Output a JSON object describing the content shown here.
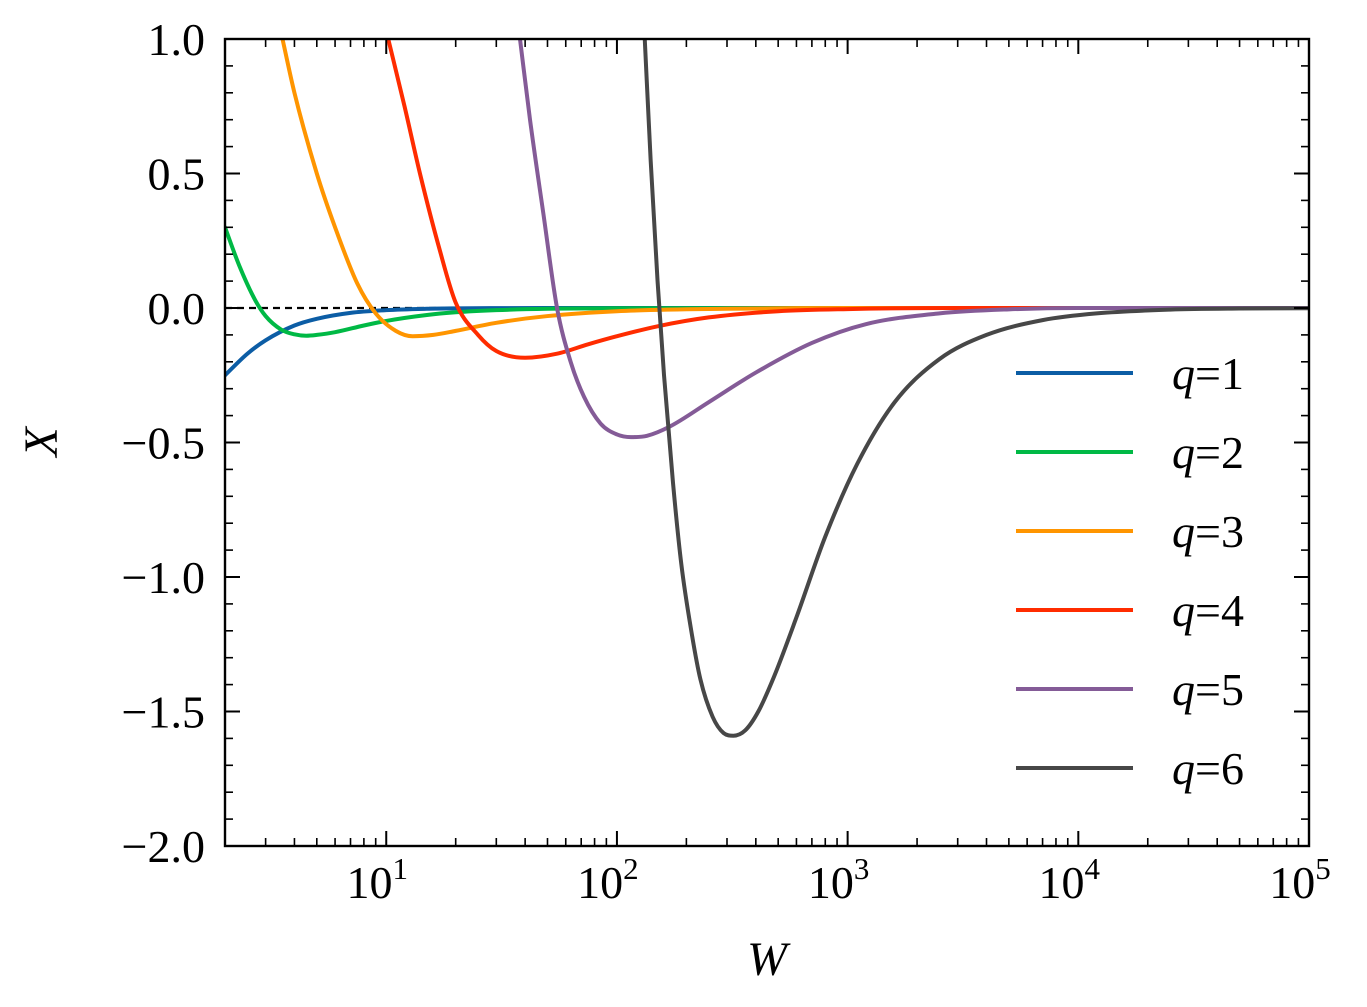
{
  "chart_data": {
    "type": "line",
    "title": "",
    "xlabel": "W",
    "ylabel": "X",
    "xscale": "log",
    "xlim": [
      2,
      100000
    ],
    "ylim": [
      -2.0,
      1.0
    ],
    "x_ticks": [
      {
        "value": 10,
        "base": "10",
        "exp": "1"
      },
      {
        "value": 100,
        "base": "10",
        "exp": "2"
      },
      {
        "value": 1000,
        "base": "10",
        "exp": "3"
      },
      {
        "value": 10000,
        "base": "10",
        "exp": "4"
      },
      {
        "value": 100000,
        "base": "10",
        "exp": "5"
      }
    ],
    "y_ticks": [
      {
        "value": 1.0,
        "label": "1.0"
      },
      {
        "value": 0.5,
        "label": "0.5"
      },
      {
        "value": 0.0,
        "label": "0.0"
      },
      {
        "value": -0.5,
        "label": "−0.5"
      },
      {
        "value": -1.0,
        "label": "−1.0"
      },
      {
        "value": -1.5,
        "label": "−1.5"
      },
      {
        "value": -2.0,
        "label": "−2.0"
      }
    ],
    "reference_line": {
      "y": 0.0,
      "style": "dashed",
      "color": "#000000"
    },
    "legend": {
      "position": "lower-right"
    },
    "series": [
      {
        "name": "q=1",
        "q_symbol": "q",
        "q_value": "=1",
        "color": "#0C5DA5",
        "x": [
          2,
          2.5,
          3,
          4,
          5,
          7,
          10,
          15,
          20,
          30,
          50,
          100,
          1000,
          100000
        ],
        "y": [
          -0.25,
          -0.17,
          -0.12,
          -0.065,
          -0.04,
          -0.018,
          -0.008,
          -0.003,
          -0.0015,
          -0.0005,
          0,
          0,
          0,
          0
        ]
      },
      {
        "name": "q=2",
        "q_symbol": "q",
        "q_value": "=2",
        "color": "#00B945",
        "x": [
          2,
          2.3,
          2.7,
          3,
          3.5,
          4,
          4.5,
          5,
          6,
          8,
          10,
          15,
          20,
          30,
          50,
          100,
          1000,
          100000
        ],
        "y": [
          0.3,
          0.16,
          0.03,
          -0.03,
          -0.08,
          -0.098,
          -0.103,
          -0.1,
          -0.09,
          -0.065,
          -0.048,
          -0.026,
          -0.016,
          -0.008,
          -0.003,
          -0.001,
          0,
          0
        ]
      },
      {
        "name": "q=3",
        "q_symbol": "q",
        "q_value": "=3",
        "color": "#FF9500",
        "x": [
          3.55,
          4,
          5,
          6,
          7.5,
          9,
          11,
          13,
          16,
          20,
          30,
          50,
          100,
          300,
          1000,
          100000
        ],
        "y": [
          1.0,
          0.8,
          0.5,
          0.3,
          0.09,
          -0.02,
          -0.085,
          -0.105,
          -0.1,
          -0.085,
          -0.055,
          -0.03,
          -0.012,
          -0.003,
          0,
          0
        ]
      },
      {
        "name": "q=4",
        "q_symbol": "q",
        "q_value": "=4",
        "color": "#FF2C00",
        "x": [
          10.2,
          12,
          14,
          17,
          20,
          25,
          30,
          40,
          55,
          75,
          100,
          150,
          250,
          500,
          1000,
          3000,
          100000
        ],
        "y": [
          1.0,
          0.75,
          0.5,
          0.22,
          0.02,
          -0.1,
          -0.16,
          -0.185,
          -0.17,
          -0.135,
          -0.105,
          -0.068,
          -0.035,
          -0.012,
          -0.004,
          0,
          0
        ]
      },
      {
        "name": "q=5",
        "q_symbol": "q",
        "q_value": "=5",
        "color": "#845B97",
        "x": [
          38,
          42,
          48,
          55,
          63,
          72,
          85,
          100,
          115,
          135,
          170,
          250,
          400,
          700,
          1200,
          2500,
          5000,
          10000,
          100000
        ],
        "y": [
          1.0,
          0.7,
          0.35,
          0.0,
          -0.2,
          -0.33,
          -0.43,
          -0.47,
          -0.48,
          -0.475,
          -0.44,
          -0.35,
          -0.24,
          -0.13,
          -0.06,
          -0.02,
          -0.005,
          0,
          0
        ]
      },
      {
        "name": "q=6",
        "q_symbol": "q",
        "q_value": "=6",
        "color": "#474747",
        "x": [
          132,
          140,
          150,
          160,
          175,
          190,
          210,
          230,
          260,
          290,
          320,
          360,
          410,
          480,
          600,
          800,
          1100,
          1600,
          2500,
          4000,
          7000,
          12000,
          25000,
          50000,
          100000
        ],
        "y": [
          1.0,
          0.55,
          0.1,
          -0.25,
          -0.65,
          -0.95,
          -1.2,
          -1.38,
          -1.52,
          -1.58,
          -1.59,
          -1.57,
          -1.5,
          -1.37,
          -1.15,
          -0.85,
          -0.58,
          -0.35,
          -0.19,
          -0.1,
          -0.045,
          -0.02,
          -0.006,
          -0.002,
          -0.001
        ]
      }
    ]
  }
}
